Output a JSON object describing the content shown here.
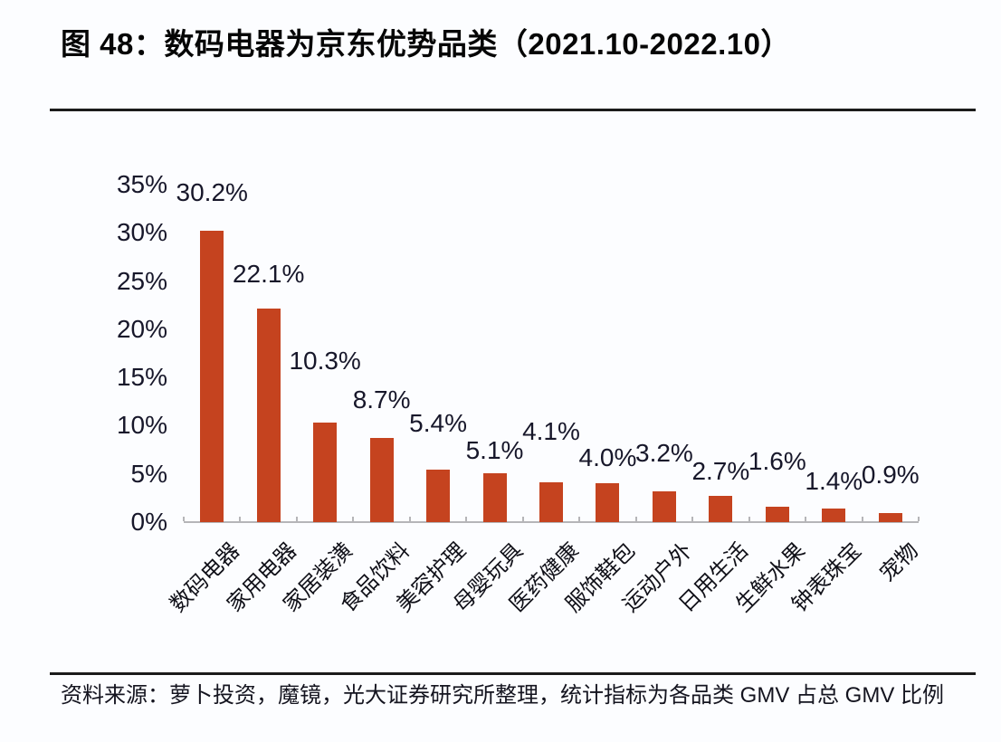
{
  "header": {
    "title": "图 48：数码电器为京东优势品类（2021.10-2022.10）"
  },
  "chart_data": {
    "type": "bar",
    "title": "数码电器为京东优势品类（2021.10-2022.10）",
    "categories": [
      "数码电器",
      "家用电器",
      "家居装潢",
      "食品饮料",
      "美容护理",
      "母婴玩具",
      "医药健康",
      "服饰鞋包",
      "运动户外",
      "日用生活",
      "生鲜水果",
      "钟表珠宝",
      "宠物"
    ],
    "values": [
      30.2,
      22.1,
      10.3,
      8.7,
      5.4,
      5.1,
      4.1,
      4.0,
      3.2,
      2.7,
      1.6,
      1.4,
      0.9
    ],
    "value_labels": [
      "30.2%",
      "22.1%",
      "10.3%",
      "8.7%",
      "5.4%",
      "5.1%",
      "4.1%",
      "4.0%",
      "3.2%",
      "2.7%",
      "1.6%",
      "1.4%",
      "0.9%"
    ],
    "xlabel": "",
    "ylabel": "",
    "ylim": [
      0,
      35
    ],
    "yticks": [
      0,
      5,
      10,
      15,
      20,
      25,
      30,
      35
    ],
    "ytick_labels": [
      "0%",
      "5%",
      "10%",
      "15%",
      "20%",
      "25%",
      "30%",
      "35%"
    ],
    "grid": false,
    "legend": "none",
    "bar_color": "#c5431f"
  },
  "source": {
    "text": "资料来源：萝卜投资，魔镜，光大证券研究所整理，统计指标为各品类 GMV 占总 GMV 比例"
  }
}
